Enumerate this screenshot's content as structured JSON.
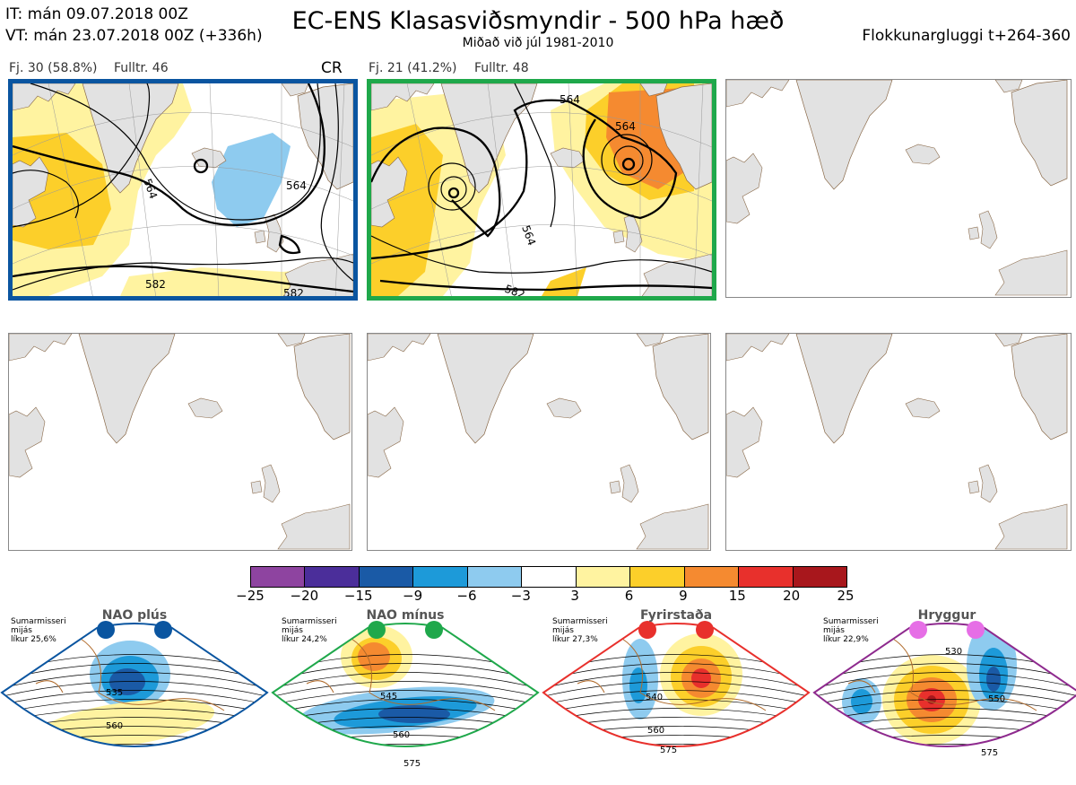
{
  "header": {
    "it": "IT: mán 09.07.2018 00Z",
    "vt": "VT: mán 23.07.2018 00Z  (+336h)",
    "title": "EC-ENS Klasasviðsmyndir - 500 hPa hæð",
    "subtitle": "Miðað við júl 1981-2010",
    "window": "Flokkunargluggi t+264-360"
  },
  "clusters": [
    {
      "label": "Fj. 30 (58.8%)",
      "full": "Fulltr. 46",
      "tag": "CR",
      "frame_color": "#0a55a0",
      "contour_labels": [
        "564",
        "564",
        "582",
        "582"
      ]
    },
    {
      "label": "Fj. 21 (41.2%)",
      "full": "Fulltr. 48",
      "tag": "",
      "frame_color": "#1fa84b",
      "contour_labels": [
        "564",
        "564",
        "564",
        "582"
      ]
    }
  ],
  "colorbar": {
    "ticks": [
      "−25",
      "−20",
      "−15",
      "−9",
      "−6",
      "−3",
      "3",
      "6",
      "9",
      "15",
      "20",
      "25"
    ],
    "colors": [
      "#8e44a0",
      "#4b2e9a",
      "#1a5aa6",
      "#1d9ad9",
      "#8ecbef",
      "#ffffff",
      "#fff3a0",
      "#fccf2a",
      "#f58a30",
      "#e8302c",
      "#a8171c"
    ]
  },
  "regimes": [
    {
      "name": "NAO plús",
      "season": "Sumarmisseri",
      "period": "mijás",
      "prob": "líkur 25,6%",
      "color": "#0a55a0",
      "labels": [
        "535",
        "560"
      ]
    },
    {
      "name": "NAO mínus",
      "season": "Sumarmisseri",
      "period": "mijás",
      "prob": "líkur 24,2%",
      "color": "#1fa84b",
      "labels": [
        "545",
        "560",
        "575"
      ]
    },
    {
      "name": "Fyrirstaða",
      "season": "Sumarmisseri",
      "period": "mijás",
      "prob": "líkur 27,3%",
      "color": "#e8302c",
      "labels": [
        "540",
        "560",
        "575"
      ]
    },
    {
      "name": "Hryggur",
      "season": "Sumarmisseri",
      "period": "mijás",
      "prob": "líkur 22,9%",
      "color": "#8e2a8e",
      "labels": [
        "530",
        "550",
        "575"
      ]
    }
  ]
}
